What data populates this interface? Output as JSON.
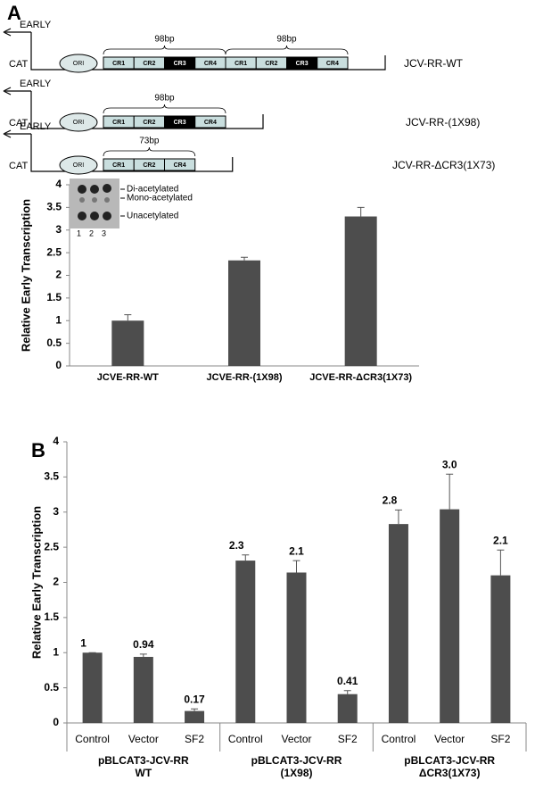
{
  "diagram": {
    "panel_a": "A",
    "panel_b": "B",
    "early": "EARLY",
    "cat": "CAT",
    "ori": "ORI",
    "constructs": [
      {
        "name": "JCV-RR-WT",
        "boxes": [
          "CR1",
          "CR2",
          "CR3",
          "CR4",
          "CR1",
          "CR2",
          "CR3",
          "CR4"
        ],
        "braces": [
          "98bp",
          "98bp"
        ]
      },
      {
        "name": "JCV-RR-(1X98)",
        "boxes": [
          "CR1",
          "CR2",
          "CR3",
          "CR4"
        ],
        "braces": [
          "98bp"
        ]
      },
      {
        "name": "JCV-RR-ΔCR3(1X73)",
        "boxes": [
          "CR1",
          "CR2",
          "CR4"
        ],
        "braces": [
          "73bp"
        ]
      }
    ],
    "gel": {
      "bands": [
        "Di-acetylated",
        "Mono-acetylated",
        "Unacetylated"
      ],
      "lanes": [
        "1",
        "2",
        "3"
      ]
    }
  },
  "chart_data": [
    {
      "type": "bar",
      "ylabel": "Relative Early Transcription",
      "categories": [
        "JCVE-RR-WT",
        "JCVE-RR-(1X98)",
        "JCVE-RR-ΔCR3(1X73)"
      ],
      "values": [
        1.0,
        2.33,
        3.3
      ],
      "errors": [
        0.13,
        0.07,
        0.2
      ],
      "color": "#4d4d4d",
      "ylim": [
        0,
        4
      ],
      "yticks": [
        0,
        0.5,
        1,
        1.5,
        2,
        2.5,
        3,
        3.5,
        4
      ]
    },
    {
      "type": "bar",
      "ylabel": "Relative Early Transcription",
      "categories": [
        "Control",
        "Vector",
        "SF2",
        "Control",
        "Vector",
        "SF2",
        "Control",
        "Vector",
        "SF2"
      ],
      "groups": [
        [
          "pBLCAT3-JCV-RR",
          "WT"
        ],
        [
          "pBLCAT3-JCV-RR",
          "(1X98)"
        ],
        [
          "pBLCAT3-JCV-RR",
          "ΔCR3(1X73)"
        ]
      ],
      "values": [
        1,
        0.94,
        0.17,
        2.31,
        2.14,
        0.41,
        2.83,
        3.04,
        2.1
      ],
      "value_labels": [
        "1",
        "0.94",
        "0.17",
        "2.3",
        "2.1",
        "0.41",
        "2.8",
        "3.0",
        "2.1"
      ],
      "errors": [
        0,
        0.04,
        0.03,
        0.08,
        0.17,
        0.05,
        0.2,
        0.5,
        0.36
      ],
      "color": "#4d4d4d",
      "ylim": [
        0,
        4
      ],
      "yticks": [
        0,
        0.5,
        1,
        1.5,
        2,
        2.5,
        3,
        3.5,
        4
      ]
    }
  ]
}
